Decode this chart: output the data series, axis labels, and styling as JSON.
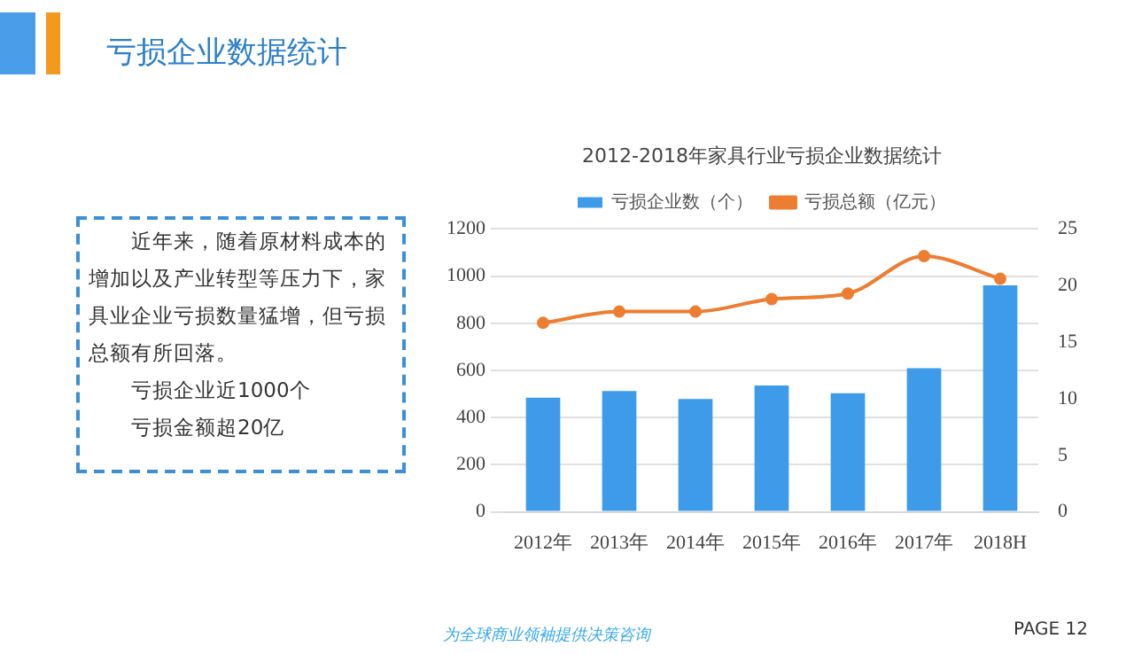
{
  "chart_data": {
    "type": "bar",
    "title": "2012-2018年家具行业亏损企业数据统计",
    "categories": [
      "2012年",
      "2013年",
      "2014年",
      "2015年",
      "2016年",
      "2017年",
      "2018H"
    ],
    "series": [
      {
        "name": "亏损企业数（个）",
        "color": "#3d9be9",
        "values": [
          484,
          513,
          479,
          536,
          503,
          609,
          961
        ]
      },
      {
        "name": "亏损总额（亿元）",
        "type": "line",
        "axis": "y2",
        "color": "#ed7d31",
        "values": [
          16.7,
          17.7,
          17.7,
          18.8,
          19.3,
          22.6,
          20.6
        ]
      }
    ],
    "ylim": [
      0,
      1200
    ],
    "yticks": [
      0,
      200,
      400,
      600,
      800,
      1000,
      1200
    ],
    "y2lim": [
      0,
      25
    ],
    "y2ticks": [
      0,
      5,
      10,
      15,
      20,
      25
    ],
    "grid": "y",
    "legend": "top",
    "marker": "circle",
    "annotations": [
      "亏损企业数据统计",
      "近年来，随着原材料成本的增加以及产业转型等压力下，家具业企业亏损数量猛增，但亏损总额有所回落。",
      "亏损企业近1000个",
      "亏损金额超20亿",
      "为全球商业领袖提供决策咨询",
      "PAGE 12"
    ]
  }
}
